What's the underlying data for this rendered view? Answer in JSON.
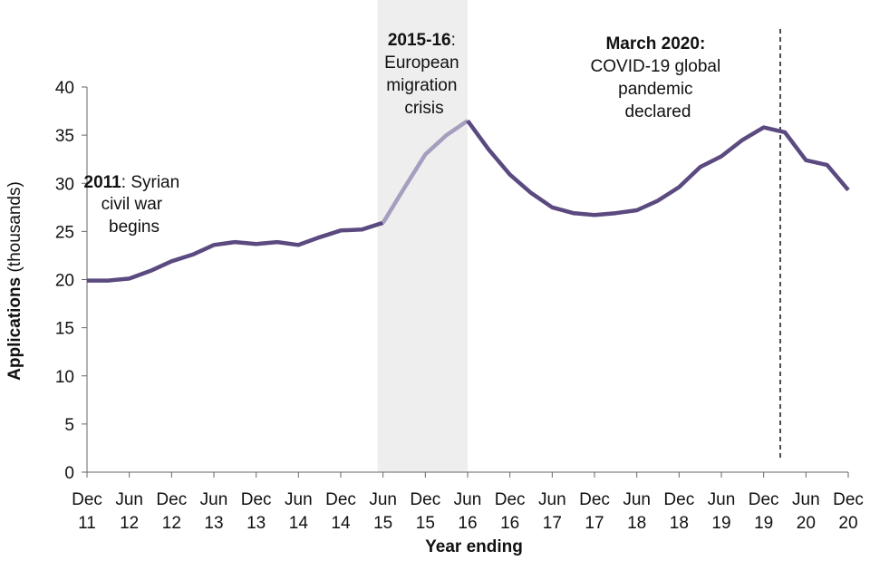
{
  "chart_data": {
    "type": "line",
    "title": "",
    "xlabel": "Year ending",
    "ylabel_bold": "Applications",
    "ylabel_rest": " (thousands)",
    "ylim": [
      0,
      40
    ],
    "yticks": [
      0,
      5,
      10,
      15,
      20,
      25,
      30,
      35,
      40
    ],
    "x_labels": [
      [
        "Dec",
        "11"
      ],
      [
        "Jun",
        "12"
      ],
      [
        "Dec",
        "12"
      ],
      [
        "Jun",
        "13"
      ],
      [
        "Dec",
        "13"
      ],
      [
        "Jun",
        "14"
      ],
      [
        "Dec",
        "14"
      ],
      [
        "Jun",
        "15"
      ],
      [
        "Dec",
        "15"
      ],
      [
        "Jun",
        "16"
      ],
      [
        "Dec",
        "16"
      ],
      [
        "Jun",
        "17"
      ],
      [
        "Dec",
        "17"
      ],
      [
        "Jun",
        "18"
      ],
      [
        "Dec",
        "18"
      ],
      [
        "Jun",
        "19"
      ],
      [
        "Dec",
        "19"
      ],
      [
        "Jun",
        "20"
      ],
      [
        "Dec",
        "20"
      ]
    ],
    "periods": [
      "Dec 11",
      "Mar 12",
      "Jun 12",
      "Sep 12",
      "Dec 12",
      "Mar 13",
      "Jun 13",
      "Sep 13",
      "Dec 13",
      "Mar 14",
      "Jun 14",
      "Sep 14",
      "Dec 14",
      "Mar 15",
      "Jun 15",
      "Sep 15",
      "Dec 15",
      "Mar 16",
      "Jun 16",
      "Sep 16",
      "Dec 16",
      "Mar 17",
      "Jun 17",
      "Sep 17",
      "Dec 17",
      "Mar 18",
      "Jun 18",
      "Sep 18",
      "Dec 18",
      "Mar 19",
      "Jun 19",
      "Sep 19",
      "Dec 19",
      "Mar 20",
      "Jun 20",
      "Sep 20",
      "Dec 20"
    ],
    "values": [
      19.9,
      19.9,
      20.1,
      20.9,
      21.9,
      22.6,
      23.6,
      23.9,
      23.7,
      23.9,
      23.6,
      24.4,
      25.1,
      25.2,
      25.9,
      29.5,
      33.0,
      35.0,
      36.5,
      33.5,
      30.9,
      29.0,
      27.5,
      26.9,
      26.7,
      26.9,
      27.2,
      28.2,
      29.6,
      31.7,
      32.8,
      34.5,
      35.8,
      35.3,
      32.4,
      31.9,
      29.3
    ],
    "series_color": "#5b4a80",
    "highlight_color": "#a79ebf",
    "shade_color": "#eeeeee",
    "highlight_range": [
      "Jun 15",
      "Jun 16"
    ],
    "event_marker": "Mar 20",
    "annotations": [
      {
        "id": "syria",
        "bold": "2011",
        "lines": [
          ": Syrian",
          "civil war",
          "begins"
        ]
      },
      {
        "id": "europe",
        "bold": "2015-16",
        "lines": [
          ":",
          "European",
          "migration",
          "crisis"
        ]
      },
      {
        "id": "covid",
        "bold": "March 2020:",
        "lines": [
          "COVID-19 global",
          "pandemic",
          "declared"
        ]
      }
    ]
  }
}
